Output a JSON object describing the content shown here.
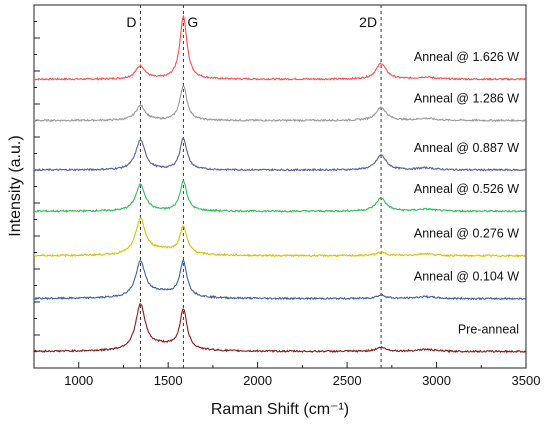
{
  "chart_data": {
    "type": "line",
    "title": "",
    "xlabel": "Raman Shift (cm⁻¹)",
    "ylabel": "Intensity (a.u.)",
    "xlim": [
      750,
      3500
    ],
    "x_ticks": [
      1000,
      1500,
      2000,
      2500,
      3000,
      3500
    ],
    "y_tick_labels": "none",
    "grid": false,
    "legend": "inline labels at right",
    "peak_markers": [
      {
        "label": "D",
        "x": 1345
      },
      {
        "label": "G",
        "x": 1585
      },
      {
        "label": "2D",
        "x": 2690
      }
    ],
    "series": [
      {
        "name": "Anneal @ 1.626 W",
        "color": "#ff4d4d",
        "baseline": 8.75,
        "peaks": {
          "D": 0.4,
          "G": 1.9,
          "2D": 0.48
        },
        "x": [
          750,
          1200,
          1300,
          1345,
          1400,
          1500,
          1585,
          1650,
          1800,
          2400,
          2600,
          2690,
          2780,
          2940,
          3500
        ],
        "y": [
          8.75,
          8.8,
          8.95,
          9.15,
          8.95,
          8.9,
          10.65,
          8.95,
          8.78,
          8.8,
          8.9,
          9.23,
          8.85,
          8.9,
          8.76
        ]
      },
      {
        "name": "Anneal @ 1.286 W",
        "color": "#9a9a9a",
        "baseline": 7.5,
        "peaks": {
          "D": 0.45,
          "G": 1.05,
          "2D": 0.4
        },
        "x": [
          750,
          1200,
          1300,
          1345,
          1400,
          1500,
          1585,
          1650,
          1800,
          2400,
          2600,
          2690,
          2780,
          2940,
          3500
        ],
        "y": [
          7.5,
          7.55,
          7.7,
          7.95,
          7.7,
          7.65,
          8.55,
          7.7,
          7.52,
          7.55,
          7.65,
          7.9,
          7.6,
          7.6,
          7.5
        ]
      },
      {
        "name": "Anneal @ 0.887 W",
        "color": "#5b5f9e",
        "baseline": 6.0,
        "peaks": {
          "D": 0.9,
          "G": 0.95,
          "2D": 0.45
        },
        "x": [
          750,
          1200,
          1300,
          1345,
          1400,
          1500,
          1585,
          1650,
          1800,
          2400,
          2600,
          2680,
          2780,
          2940,
          3500
        ],
        "y": [
          6.05,
          6.1,
          6.4,
          6.9,
          6.5,
          6.35,
          6.95,
          6.3,
          6.1,
          6.1,
          6.15,
          6.45,
          6.12,
          6.15,
          6.05
        ]
      },
      {
        "name": "Anneal @ 0.526 W",
        "color": "#2fbf5a",
        "baseline": 4.75,
        "peaks": {
          "D": 0.8,
          "G": 0.9,
          "2D": 0.4
        },
        "x": [
          750,
          1200,
          1300,
          1345,
          1400,
          1500,
          1585,
          1650,
          1800,
          2400,
          2600,
          2690,
          2780,
          2940,
          3500
        ],
        "y": [
          4.7,
          4.75,
          4.95,
          5.55,
          5.05,
          4.95,
          5.6,
          5.0,
          4.8,
          4.8,
          4.9,
          5.25,
          4.85,
          4.9,
          4.7
        ]
      },
      {
        "name": "Anneal @ 0.276 W",
        "color": "#d9c200",
        "baseline": 3.4,
        "peaks": {
          "D": 1.05,
          "G": 0.8,
          "2D": 0.1
        },
        "x": [
          750,
          1200,
          1300,
          1345,
          1400,
          1500,
          1585,
          1650,
          1800,
          2400,
          2600,
          2690,
          2780,
          2940,
          3500
        ],
        "y": [
          3.4,
          3.48,
          3.8,
          4.45,
          3.95,
          3.75,
          4.2,
          3.7,
          3.55,
          3.5,
          3.55,
          3.62,
          3.55,
          3.6,
          3.45
        ]
      },
      {
        "name": "Anneal @ 0.104 W",
        "color": "#3f5fa8",
        "baseline": 2.1,
        "peaks": {
          "D": 1.05,
          "G": 1.05,
          "2D": 0.1
        },
        "x": [
          750,
          1200,
          1300,
          1345,
          1400,
          1500,
          1585,
          1650,
          1800,
          2400,
          2600,
          2690,
          2780,
          2940,
          3500
        ],
        "y": [
          2.15,
          2.25,
          2.7,
          3.2,
          2.85,
          2.7,
          3.2,
          2.65,
          2.4,
          2.35,
          2.4,
          2.45,
          2.4,
          2.4,
          2.25
        ]
      },
      {
        "name": "Pre-anneal",
        "color": "#8b1a1a",
        "baseline": 0.5,
        "peaks": {
          "D": 1.35,
          "G": 1.2,
          "2D": 0.12
        },
        "x": [
          750,
          1200,
          1300,
          1345,
          1400,
          1450,
          1500,
          1585,
          1650,
          1800,
          2400,
          2600,
          2690,
          2780,
          2940,
          3500
        ],
        "y": [
          0.45,
          0.55,
          1.1,
          1.85,
          1.3,
          1.15,
          1.2,
          1.75,
          1.0,
          0.7,
          0.65,
          0.7,
          0.78,
          0.7,
          0.65,
          0.55
        ]
      }
    ]
  }
}
